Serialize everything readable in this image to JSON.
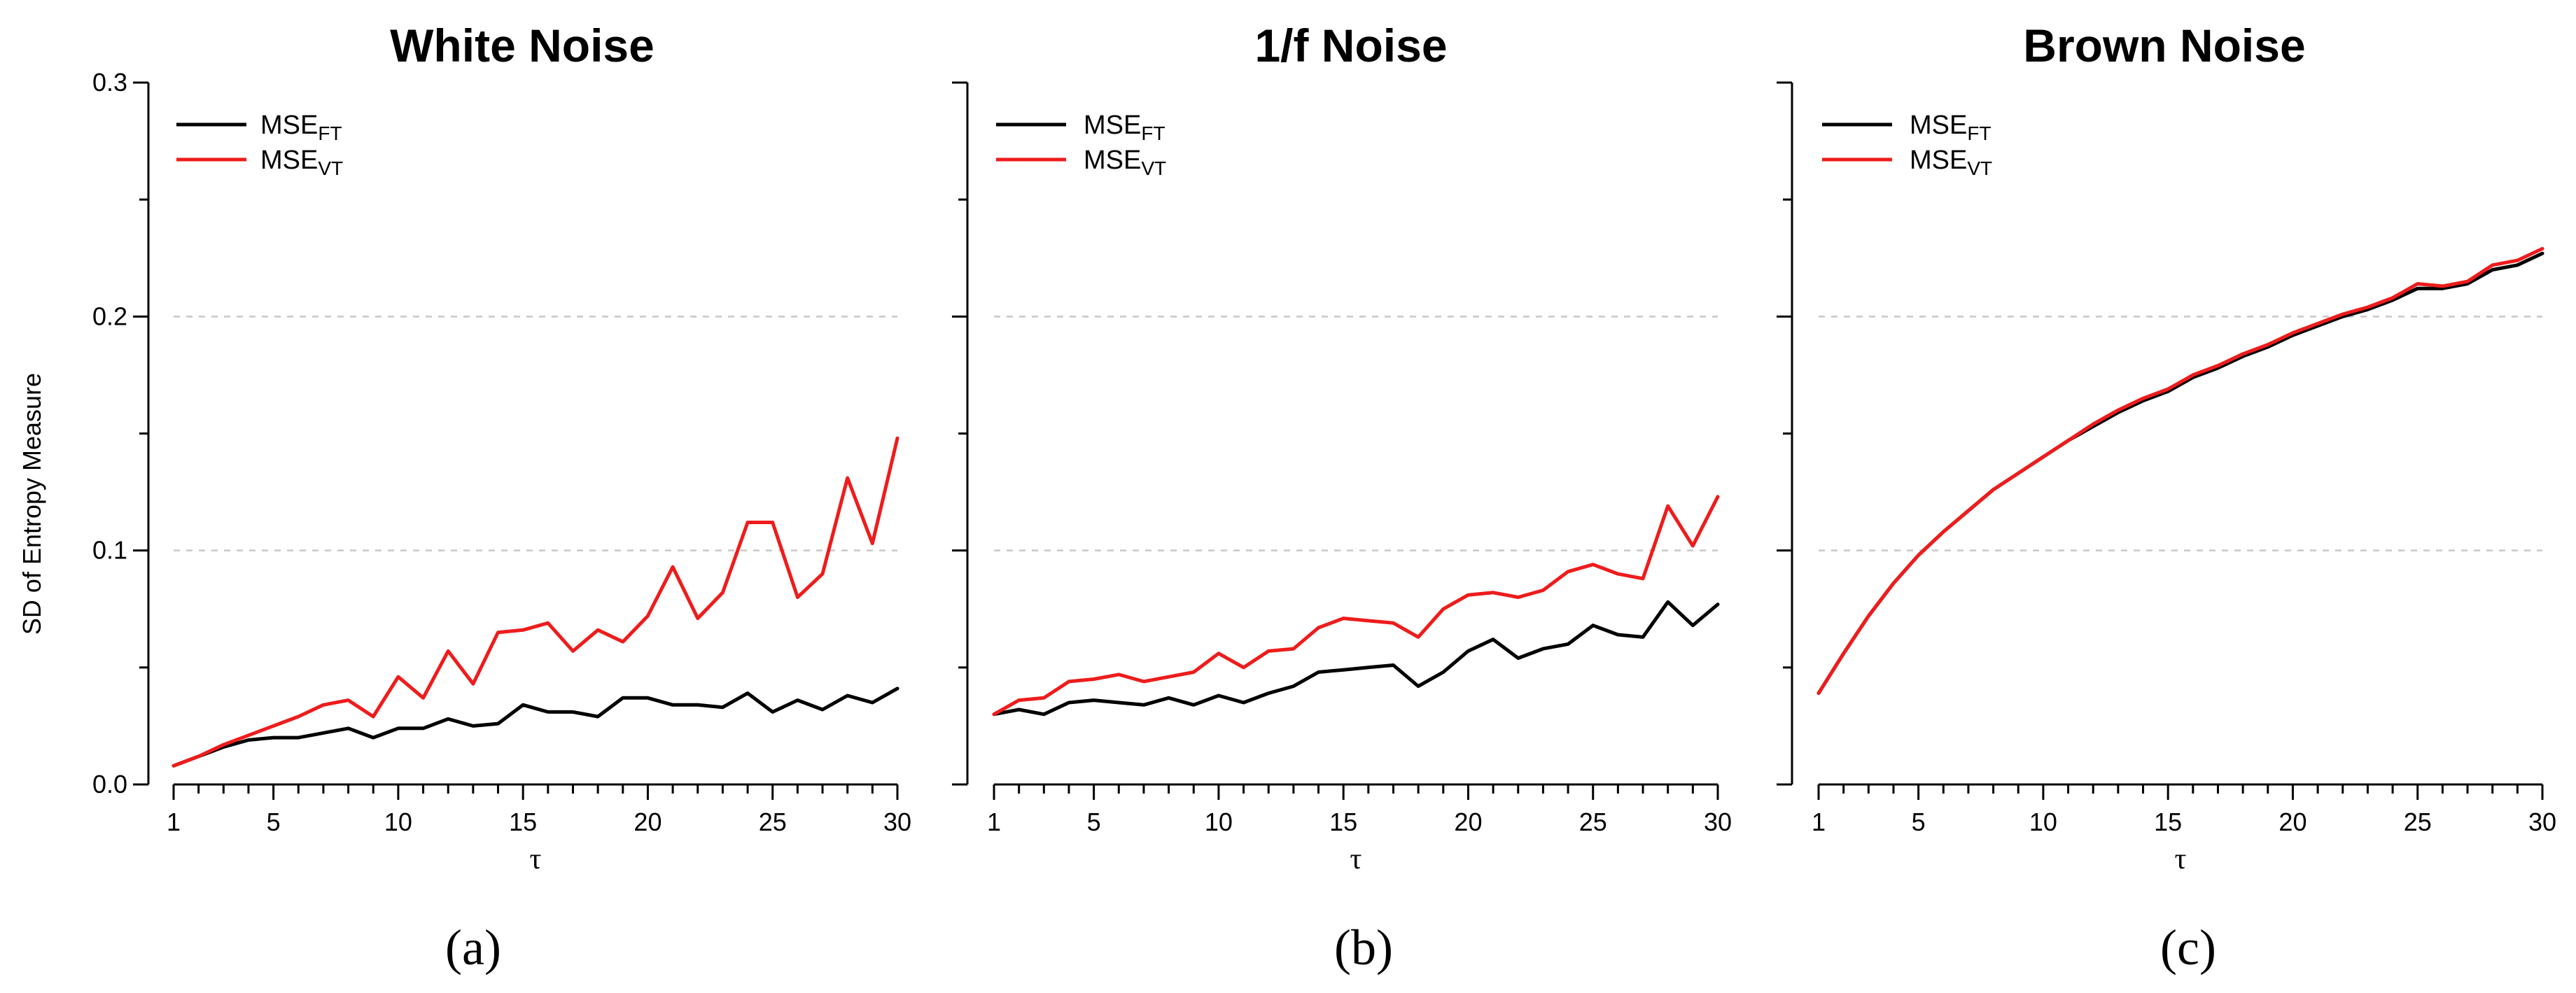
{
  "figure": {
    "y_axis_label": "SD of Entropy Measure",
    "x_axis_label": "τ",
    "y_ticks": [
      "0.0",
      "0.1",
      "0.2",
      "0.3"
    ],
    "x_ticks": [
      "1",
      "5",
      "10",
      "15",
      "20",
      "25",
      "30"
    ]
  },
  "chart_data": [
    {
      "type": "line",
      "panel_label": "(a)",
      "title": "White Noise",
      "xlabel": "τ",
      "ylabel": "SD of Entropy Measure",
      "xlim": [
        1,
        30
      ],
      "ylim": [
        0,
        0.3
      ],
      "grid": "horizontal dashed at 0.1 and 0.2",
      "legend_position": "top-left",
      "x": [
        1,
        2,
        3,
        4,
        5,
        6,
        7,
        8,
        9,
        10,
        11,
        12,
        13,
        14,
        15,
        16,
        17,
        18,
        19,
        20,
        21,
        22,
        23,
        24,
        25,
        26,
        27,
        28,
        29,
        30
      ],
      "series": [
        {
          "name": "MSE",
          "subscript": "FT",
          "color": "#000000",
          "values": [
            0.008,
            0.012,
            0.016,
            0.019,
            0.02,
            0.02,
            0.022,
            0.024,
            0.02,
            0.024,
            0.024,
            0.028,
            0.025,
            0.026,
            0.034,
            0.031,
            0.031,
            0.029,
            0.037,
            0.037,
            0.034,
            0.034,
            0.033,
            0.039,
            0.031,
            0.036,
            0.032,
            0.038,
            0.035,
            0.041
          ]
        },
        {
          "name": "MSE",
          "subscript": "VT",
          "color": "#ee1c1c",
          "values": [
            0.008,
            0.012,
            0.017,
            0.021,
            0.025,
            0.029,
            0.034,
            0.036,
            0.029,
            0.046,
            0.037,
            0.057,
            0.043,
            0.065,
            0.066,
            0.069,
            0.057,
            0.066,
            0.061,
            0.072,
            0.093,
            0.071,
            0.082,
            0.112,
            0.112,
            0.08,
            0.09,
            0.131,
            0.103,
            0.148
          ]
        }
      ]
    },
    {
      "type": "line",
      "panel_label": "(b)",
      "title": "1/f Noise",
      "xlabel": "τ",
      "ylim": [
        0,
        0.3
      ],
      "xlim": [
        1,
        30
      ],
      "grid": "horizontal dashed at 0.1 and 0.2",
      "legend_position": "top-left",
      "x": [
        1,
        2,
        3,
        4,
        5,
        6,
        7,
        8,
        9,
        10,
        11,
        12,
        13,
        14,
        15,
        16,
        17,
        18,
        19,
        20,
        21,
        22,
        23,
        24,
        25,
        26,
        27,
        28,
        29,
        30
      ],
      "series": [
        {
          "name": "MSE",
          "subscript": "FT",
          "color": "#000000",
          "values": [
            0.03,
            0.032,
            0.03,
            0.035,
            0.036,
            0.035,
            0.034,
            0.037,
            0.034,
            0.038,
            0.035,
            0.039,
            0.042,
            0.048,
            0.049,
            0.05,
            0.051,
            0.042,
            0.048,
            0.057,
            0.062,
            0.054,
            0.058,
            0.06,
            0.068,
            0.064,
            0.063,
            0.078,
            0.068,
            0.077
          ]
        },
        {
          "name": "MSE",
          "subscript": "VT",
          "color": "#ee1c1c",
          "values": [
            0.03,
            0.036,
            0.037,
            0.044,
            0.045,
            0.047,
            0.044,
            0.046,
            0.048,
            0.056,
            0.05,
            0.057,
            0.058,
            0.067,
            0.071,
            0.07,
            0.069,
            0.063,
            0.075,
            0.081,
            0.082,
            0.08,
            0.083,
            0.091,
            0.094,
            0.09,
            0.088,
            0.119,
            0.102,
            0.123
          ]
        }
      ]
    },
    {
      "type": "line",
      "panel_label": "(c)",
      "title": "Brown Noise",
      "xlabel": "τ",
      "ylim": [
        0,
        0.3
      ],
      "xlim": [
        1,
        30
      ],
      "grid": "horizontal dashed at 0.1 and 0.2",
      "legend_position": "top-left",
      "x": [
        1,
        2,
        3,
        4,
        5,
        6,
        7,
        8,
        9,
        10,
        11,
        12,
        13,
        14,
        15,
        16,
        17,
        18,
        19,
        20,
        21,
        22,
        23,
        24,
        25,
        26,
        27,
        28,
        29,
        30
      ],
      "series": [
        {
          "name": "MSE",
          "subscript": "FT",
          "color": "#000000",
          "values": [
            0.039,
            0.056,
            0.072,
            0.086,
            0.098,
            0.108,
            0.117,
            0.126,
            0.133,
            0.14,
            0.147,
            0.153,
            0.159,
            0.164,
            0.168,
            0.174,
            0.178,
            0.183,
            0.187,
            0.192,
            0.196,
            0.2,
            0.203,
            0.207,
            0.212,
            0.212,
            0.214,
            0.22,
            0.222,
            0.227
          ]
        },
        {
          "name": "MSE",
          "subscript": "VT",
          "color": "#ee1c1c",
          "values": [
            0.039,
            0.056,
            0.072,
            0.086,
            0.098,
            0.108,
            0.117,
            0.126,
            0.133,
            0.14,
            0.147,
            0.154,
            0.16,
            0.165,
            0.169,
            0.175,
            0.179,
            0.184,
            0.188,
            0.193,
            0.197,
            0.201,
            0.204,
            0.208,
            0.214,
            0.213,
            0.215,
            0.222,
            0.224,
            0.229
          ]
        }
      ]
    }
  ]
}
